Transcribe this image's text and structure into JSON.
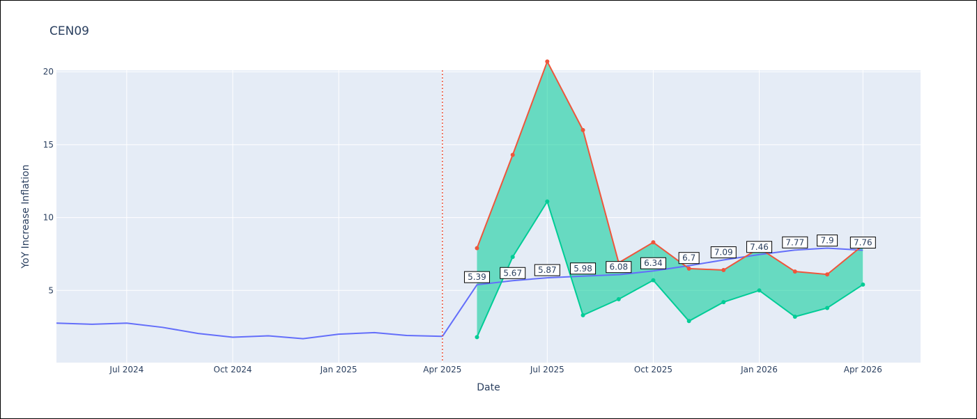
{
  "chart_data": {
    "type": "line",
    "title": "CEN09",
    "xlabel": "Date",
    "ylabel": "YoY Increase Inflation",
    "ylim": [
      0.05,
      20.1
    ],
    "yticks": [
      5,
      10,
      15,
      20
    ],
    "xticks": [
      {
        "date": "2024-07-01",
        "label": "Jul 2024"
      },
      {
        "date": "2024-10-01",
        "label": "Oct 2024"
      },
      {
        "date": "2025-01-01",
        "label": "Jan 2025"
      },
      {
        "date": "2025-04-01",
        "label": "Apr 2025"
      },
      {
        "date": "2025-07-01",
        "label": "Jul 2025"
      },
      {
        "date": "2025-10-01",
        "label": "Oct 2025"
      },
      {
        "date": "2026-01-01",
        "label": "Jan 2026"
      },
      {
        "date": "2026-04-01",
        "label": "Apr 2026"
      }
    ],
    "xlim": [
      "2024-05-01",
      "2026-05-21"
    ],
    "forecast_start": "2025-04-01",
    "grid": true,
    "colors": {
      "plot_bg": "#e5ecf6",
      "history": "#636efa",
      "forecast": "#636efa",
      "upper": "#ef553b",
      "lower": "#00cc96",
      "band_fill": "#00cc96",
      "divider": "#ef553b"
    },
    "series": [
      {
        "role": "history",
        "x": [
          "2024-05-01",
          "2024-06-01",
          "2024-07-01",
          "2024-08-01",
          "2024-09-01",
          "2024-10-01",
          "2024-11-01",
          "2024-12-01",
          "2025-01-01",
          "2025-02-01",
          "2025-03-01",
          "2025-04-01"
        ],
        "y": [
          2.76,
          2.68,
          2.76,
          2.47,
          2.05,
          1.79,
          1.89,
          1.69,
          2.0,
          2.11,
          1.91,
          1.85
        ]
      },
      {
        "role": "forecast",
        "x": [
          "2025-04-01",
          "2025-05-01",
          "2025-06-01",
          "2025-07-01",
          "2025-08-01",
          "2025-09-01",
          "2025-10-01",
          "2025-11-01",
          "2025-12-01",
          "2026-01-01",
          "2026-02-01",
          "2026-03-01",
          "2026-04-01"
        ],
        "y": [
          1.85,
          5.39,
          5.67,
          5.87,
          5.98,
          6.08,
          6.34,
          6.7,
          7.09,
          7.46,
          7.77,
          7.9,
          7.76
        ],
        "labels": [
          "",
          "5.39",
          "5.67",
          "5.87",
          "5.98",
          "6.08",
          "6.34",
          "6.7",
          "7.09",
          "7.46",
          "7.77",
          "7.9",
          "7.76"
        ]
      },
      {
        "role": "upper",
        "x": [
          "2025-05-01",
          "2025-06-01",
          "2025-07-01",
          "2025-08-01",
          "2025-09-01",
          "2025-10-01",
          "2025-11-01",
          "2025-12-01",
          "2026-01-01",
          "2026-02-01",
          "2026-03-01",
          "2026-04-01"
        ],
        "y": [
          7.9,
          14.3,
          20.7,
          16.0,
          6.9,
          8.3,
          6.5,
          6.4,
          7.9,
          6.3,
          6.1,
          8.1
        ]
      },
      {
        "role": "lower",
        "x": [
          "2025-05-01",
          "2025-06-01",
          "2025-07-01",
          "2025-08-01",
          "2025-09-01",
          "2025-10-01",
          "2025-11-01",
          "2025-12-01",
          "2026-01-01",
          "2026-02-01",
          "2026-03-01",
          "2026-04-01"
        ],
        "y": [
          1.8,
          7.3,
          11.1,
          3.3,
          4.4,
          5.7,
          2.9,
          4.2,
          5.0,
          3.2,
          3.8,
          5.4
        ]
      }
    ]
  }
}
